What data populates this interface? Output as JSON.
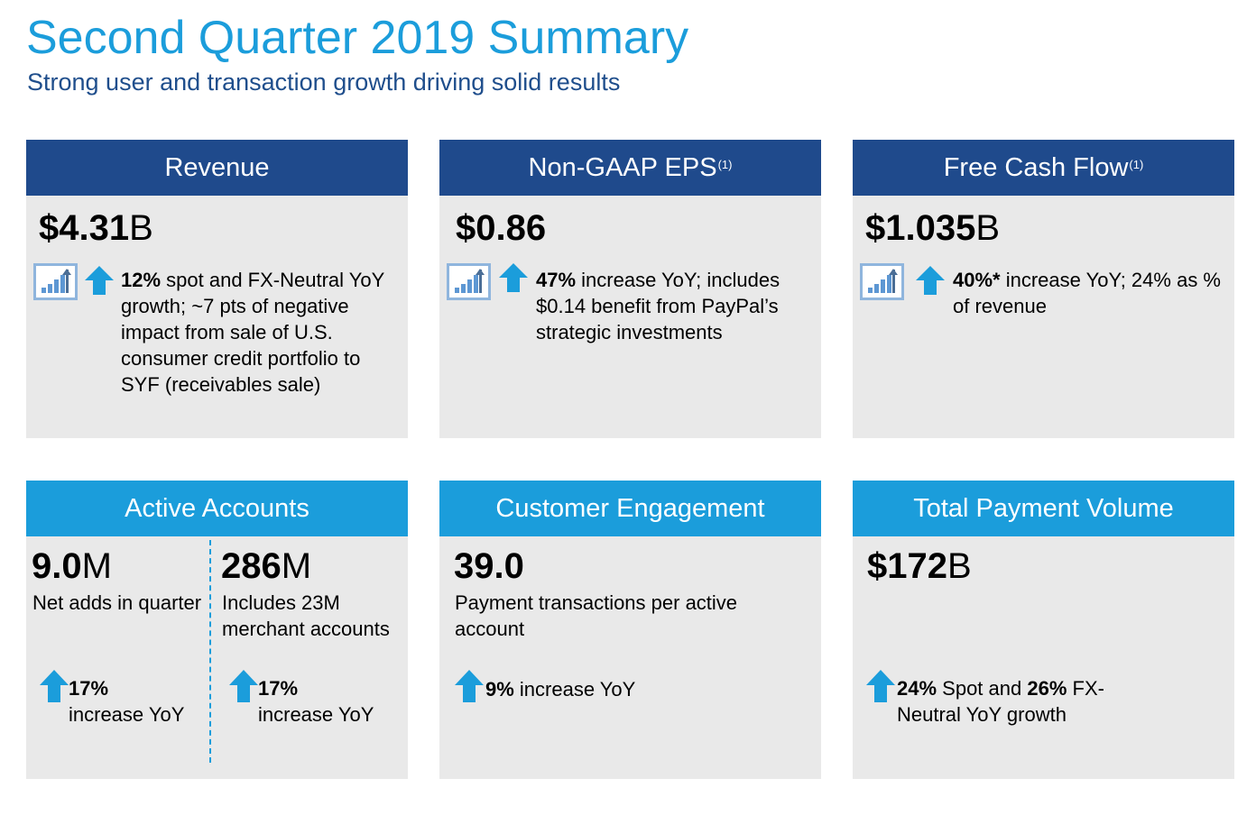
{
  "title": "Second Quarter 2019 Summary",
  "subtitle": "Strong user and transaction growth driving solid results",
  "colors": {
    "accent_blue": "#1b9ddb",
    "navy": "#1f4a8c",
    "panel_gray": "#e9e9e9"
  },
  "cards": {
    "revenue": {
      "header": "Revenue",
      "value": "$4.31",
      "unit": "B",
      "icons": [
        "growth-chart-icon",
        "up-arrow-icon"
      ],
      "highlight": "12%",
      "detail": " spot and FX-Neutral YoY growth; ~7 pts of negative impact from sale of U.S. consumer credit portfolio to SYF (receivables sale)"
    },
    "eps": {
      "header": "Non-GAAP EPS",
      "footnote": "(1)",
      "value": "$0.86",
      "icons": [
        "growth-chart-icon",
        "up-arrow-icon"
      ],
      "highlight": "47%",
      "detail": " increase YoY; includes $0.14 benefit from PayPal’s strategic investments"
    },
    "fcf": {
      "header": "Free Cash Flow",
      "footnote": "(1)",
      "value": "$1.035",
      "unit": "B",
      "icons": [
        "growth-chart-icon",
        "up-arrow-icon"
      ],
      "highlight": "40%*",
      "detail": " increase YoY; 24% as % of revenue"
    },
    "active_accounts": {
      "header": "Active Accounts",
      "left": {
        "value": "9.0",
        "unit": "M",
        "label": "Net adds in quarter",
        "growth": "17%",
        "growth_text": "increase YoY"
      },
      "right": {
        "value": "286",
        "unit": "M",
        "label": "Includes 23M merchant accounts",
        "growth": "17%",
        "growth_text": "increase YoY"
      }
    },
    "engagement": {
      "header": "Customer Engagement",
      "value": "39.0",
      "label": "Payment transactions per active account",
      "growth": "9%",
      "growth_text": " increase YoY"
    },
    "tpv": {
      "header": "Total Payment Volume",
      "value": "$172",
      "unit": "B",
      "growth_spot": "24%",
      "growth_mid": " Spot and ",
      "growth_fx": "26%",
      "growth_end": " FX-Neutral YoY growth"
    }
  }
}
